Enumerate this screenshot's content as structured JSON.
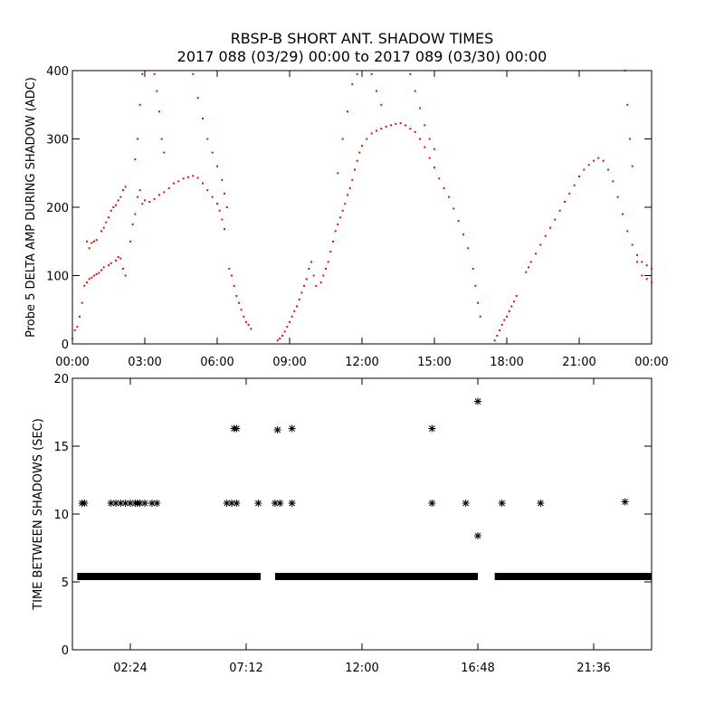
{
  "page": {
    "title_line1": "RBSP-B SHORT ANT. SHADOW TIMES",
    "title_line2": "2017 088 (03/29) 00:00 to 2017 089 (03/30) 00:00"
  },
  "colors": {
    "amp_points": "#dd1100",
    "shadow_points": "#000000",
    "axes": "#000000",
    "background": "#ffffff"
  },
  "chart_data": [
    {
      "type": "scatter",
      "ylabel": "Probe 5 DELTA AMP DURING SHADOW (ADC)",
      "xlim": [
        0,
        24
      ],
      "ylim": [
        0,
        400
      ],
      "x_unit": "hours after 2017-03-29 00:00",
      "x_ticks": [
        0,
        3,
        6,
        9,
        12,
        15,
        18,
        21,
        24
      ],
      "x_tick_labels": [
        "00:00",
        "03:00",
        "06:00",
        "09:00",
        "12:00",
        "15:00",
        "18:00",
        "21:00",
        "00:00"
      ],
      "y_ticks": [
        0,
        100,
        200,
        300,
        400
      ],
      "y_tick_labels": [
        "0",
        "100",
        "200",
        "300",
        "400"
      ],
      "grid": false,
      "series": [
        {
          "points": [
            [
              0.0,
              8
            ],
            [
              0.1,
              20
            ],
            [
              0.2,
              25
            ],
            [
              0.3,
              40
            ],
            [
              0.4,
              60
            ],
            [
              0.5,
              85
            ],
            [
              0.6,
              90
            ],
            [
              0.7,
              95
            ],
            [
              0.8,
              97
            ],
            [
              0.9,
              100
            ],
            [
              1.0,
              102
            ],
            [
              1.1,
              104
            ],
            [
              1.2,
              108
            ],
            [
              1.3,
              112
            ],
            [
              1.5,
              115
            ],
            [
              1.6,
              118
            ],
            [
              1.8,
              122
            ],
            [
              1.9,
              127
            ],
            [
              2.0,
              125
            ],
            [
              2.1,
              110
            ],
            [
              2.2,
              100
            ],
            [
              0.6,
              150
            ],
            [
              0.7,
              140
            ],
            [
              0.8,
              148
            ],
            [
              0.9,
              150
            ],
            [
              1.0,
              152
            ],
            [
              1.2,
              165
            ],
            [
              1.3,
              170
            ],
            [
              1.4,
              178
            ],
            [
              1.5,
              185
            ],
            [
              1.6,
              195
            ],
            [
              1.7,
              200
            ],
            [
              1.8,
              203
            ],
            [
              1.9,
              210
            ],
            [
              2.0,
              215
            ],
            [
              2.1,
              225
            ],
            [
              2.2,
              230
            ],
            [
              2.4,
              150
            ],
            [
              2.5,
              175
            ],
            [
              2.6,
              190
            ],
            [
              2.7,
              215
            ],
            [
              2.8,
              225
            ],
            [
              2.9,
              205
            ],
            [
              3.0,
              210
            ],
            [
              3.2,
              208
            ],
            [
              3.4,
              212
            ],
            [
              3.6,
              218
            ],
            [
              3.8,
              222
            ],
            [
              4.0,
              228
            ],
            [
              4.2,
              235
            ],
            [
              4.4,
              238
            ],
            [
              4.6,
              242
            ],
            [
              4.8,
              244
            ],
            [
              5.0,
              246
            ],
            [
              5.2,
              243
            ],
            [
              5.4,
              235
            ],
            [
              5.6,
              225
            ],
            [
              5.8,
              215
            ],
            [
              6.0,
              205
            ],
            [
              6.1,
              195
            ],
            [
              6.2,
              182
            ],
            [
              6.3,
              168
            ],
            [
              2.6,
              270
            ],
            [
              2.7,
              300
            ],
            [
              2.8,
              350
            ],
            [
              2.9,
              395
            ],
            [
              3.4,
              395
            ],
            [
              3.5,
              370
            ],
            [
              3.6,
              340
            ],
            [
              3.7,
              300
            ],
            [
              3.8,
              280
            ],
            [
              5.0,
              395
            ],
            [
              5.2,
              360
            ],
            [
              5.4,
              330
            ],
            [
              5.6,
              300
            ],
            [
              5.8,
              280
            ],
            [
              6.0,
              260
            ],
            [
              6.2,
              240
            ],
            [
              6.3,
              220
            ],
            [
              6.4,
              200
            ],
            [
              6.5,
              110
            ],
            [
              6.6,
              100
            ],
            [
              6.7,
              85
            ],
            [
              6.8,
              70
            ],
            [
              6.9,
              60
            ],
            [
              7.0,
              50
            ],
            [
              7.1,
              40
            ],
            [
              7.2,
              32
            ],
            [
              7.3,
              28
            ],
            [
              7.4,
              22
            ],
            [
              8.5,
              5
            ],
            [
              8.6,
              8
            ],
            [
              8.7,
              12
            ],
            [
              8.8,
              18
            ],
            [
              8.9,
              25
            ],
            [
              9.0,
              32
            ],
            [
              9.1,
              40
            ],
            [
              9.2,
              48
            ],
            [
              9.3,
              55
            ],
            [
              9.4,
              65
            ],
            [
              9.5,
              75
            ],
            [
              9.6,
              85
            ],
            [
              9.7,
              95
            ],
            [
              9.8,
              110
            ],
            [
              9.9,
              120
            ],
            [
              10.0,
              100
            ],
            [
              10.1,
              85
            ],
            [
              10.3,
              90
            ],
            [
              10.4,
              100
            ],
            [
              10.5,
              110
            ],
            [
              10.6,
              120
            ],
            [
              10.7,
              135
            ],
            [
              10.8,
              150
            ],
            [
              10.9,
              165
            ],
            [
              11.0,
              175
            ],
            [
              11.1,
              185
            ],
            [
              11.2,
              195
            ],
            [
              11.3,
              205
            ],
            [
              11.4,
              218
            ],
            [
              11.5,
              228
            ],
            [
              11.6,
              240
            ],
            [
              11.7,
              255
            ],
            [
              11.8,
              268
            ],
            [
              11.9,
              280
            ],
            [
              12.0,
              290
            ],
            [
              12.2,
              300
            ],
            [
              12.4,
              308
            ],
            [
              12.6,
              312
            ],
            [
              12.8,
              315
            ],
            [
              13.0,
              318
            ],
            [
              13.2,
              320
            ],
            [
              13.4,
              322
            ],
            [
              13.6,
              323
            ],
            [
              13.8,
              320
            ],
            [
              14.0,
              315
            ],
            [
              14.2,
              310
            ],
            [
              14.4,
              300
            ],
            [
              14.6,
              288
            ],
            [
              14.8,
              272
            ],
            [
              15.0,
              258
            ],
            [
              15.2,
              242
            ],
            [
              15.4,
              228
            ],
            [
              15.6,
              215
            ],
            [
              15.8,
              198
            ],
            [
              16.0,
              180
            ],
            [
              16.2,
              160
            ],
            [
              16.4,
              140
            ],
            [
              16.6,
              110
            ],
            [
              16.7,
              85
            ],
            [
              16.8,
              60
            ],
            [
              16.9,
              40
            ],
            [
              11.0,
              250
            ],
            [
              11.2,
              300
            ],
            [
              11.4,
              340
            ],
            [
              11.6,
              380
            ],
            [
              11.8,
              395
            ],
            [
              12.4,
              395
            ],
            [
              12.6,
              370
            ],
            [
              12.8,
              350
            ],
            [
              14.0,
              395
            ],
            [
              14.2,
              370
            ],
            [
              14.4,
              345
            ],
            [
              14.6,
              320
            ],
            [
              14.8,
              300
            ],
            [
              15.0,
              285
            ],
            [
              17.5,
              5
            ],
            [
              17.6,
              12
            ],
            [
              17.7,
              20
            ],
            [
              17.8,
              28
            ],
            [
              17.9,
              35
            ],
            [
              18.0,
              40
            ],
            [
              18.1,
              48
            ],
            [
              18.2,
              55
            ],
            [
              18.3,
              62
            ],
            [
              18.4,
              70
            ],
            [
              18.8,
              105
            ],
            [
              18.9,
              112
            ],
            [
              19.0,
              120
            ],
            [
              19.2,
              132
            ],
            [
              19.4,
              145
            ],
            [
              19.6,
              158
            ],
            [
              19.8,
              170
            ],
            [
              20.0,
              182
            ],
            [
              20.2,
              195
            ],
            [
              20.4,
              208
            ],
            [
              20.6,
              220
            ],
            [
              20.8,
              232
            ],
            [
              21.0,
              245
            ],
            [
              21.2,
              255
            ],
            [
              21.4,
              262
            ],
            [
              21.6,
              268
            ],
            [
              21.8,
              272
            ],
            [
              22.0,
              268
            ],
            [
              22.2,
              255
            ],
            [
              22.4,
              238
            ],
            [
              22.6,
              215
            ],
            [
              22.8,
              190
            ],
            [
              23.0,
              165
            ],
            [
              23.2,
              145
            ],
            [
              23.4,
              130
            ],
            [
              23.6,
              120
            ],
            [
              23.8,
              115
            ],
            [
              24.0,
              110
            ],
            [
              22.9,
              400
            ],
            [
              23.0,
              350
            ],
            [
              23.1,
              300
            ],
            [
              23.2,
              260
            ],
            [
              23.4,
              120
            ],
            [
              23.6,
              100
            ],
            [
              23.8,
              95
            ],
            [
              24.0,
              90
            ]
          ]
        }
      ]
    },
    {
      "type": "scatter",
      "ylabel": "TIME BETWEEN SHADOWS (SEC)",
      "xlim": [
        0,
        24
      ],
      "ylim": [
        0,
        20
      ],
      "x_unit": "hours after 2017-03-29 00:00",
      "x_ticks": [
        2.4,
        7.2,
        12.0,
        16.8,
        21.6
      ],
      "x_tick_labels": [
        "02:24",
        "07:12",
        "12:00",
        "16:48",
        "21:36"
      ],
      "y_ticks": [
        0,
        5,
        10,
        15,
        20
      ],
      "y_tick_labels": [
        "0",
        "5",
        "10",
        "15",
        "20"
      ],
      "grid": false,
      "baseline": {
        "y": 5.4,
        "segments": [
          [
            0.2,
            7.8
          ],
          [
            8.4,
            16.8
          ],
          [
            17.5,
            24.0
          ]
        ]
      },
      "series": [
        {
          "points": [
            [
              0.4,
              10.8
            ],
            [
              0.5,
              10.8
            ],
            [
              1.6,
              10.8
            ],
            [
              1.8,
              10.8
            ],
            [
              2.0,
              10.8
            ],
            [
              2.2,
              10.8
            ],
            [
              2.4,
              10.8
            ],
            [
              2.6,
              10.8
            ],
            [
              2.7,
              10.8
            ],
            [
              2.8,
              10.8
            ],
            [
              3.0,
              10.8
            ],
            [
              3.3,
              10.8
            ],
            [
              3.5,
              10.8
            ],
            [
              6.4,
              10.8
            ],
            [
              6.6,
              10.8
            ],
            [
              6.8,
              10.8
            ],
            [
              7.7,
              10.8
            ],
            [
              8.4,
              10.8
            ],
            [
              8.6,
              10.8
            ],
            [
              9.1,
              10.8
            ],
            [
              6.7,
              16.3
            ],
            [
              6.8,
              16.3
            ],
            [
              8.5,
              16.2
            ],
            [
              9.1,
              16.3
            ],
            [
              14.9,
              16.3
            ],
            [
              14.9,
              10.8
            ],
            [
              16.3,
              10.8
            ],
            [
              16.8,
              18.3
            ],
            [
              16.8,
              8.4
            ],
            [
              17.8,
              10.8
            ],
            [
              19.4,
              10.8
            ],
            [
              22.9,
              10.9
            ]
          ]
        }
      ]
    }
  ]
}
